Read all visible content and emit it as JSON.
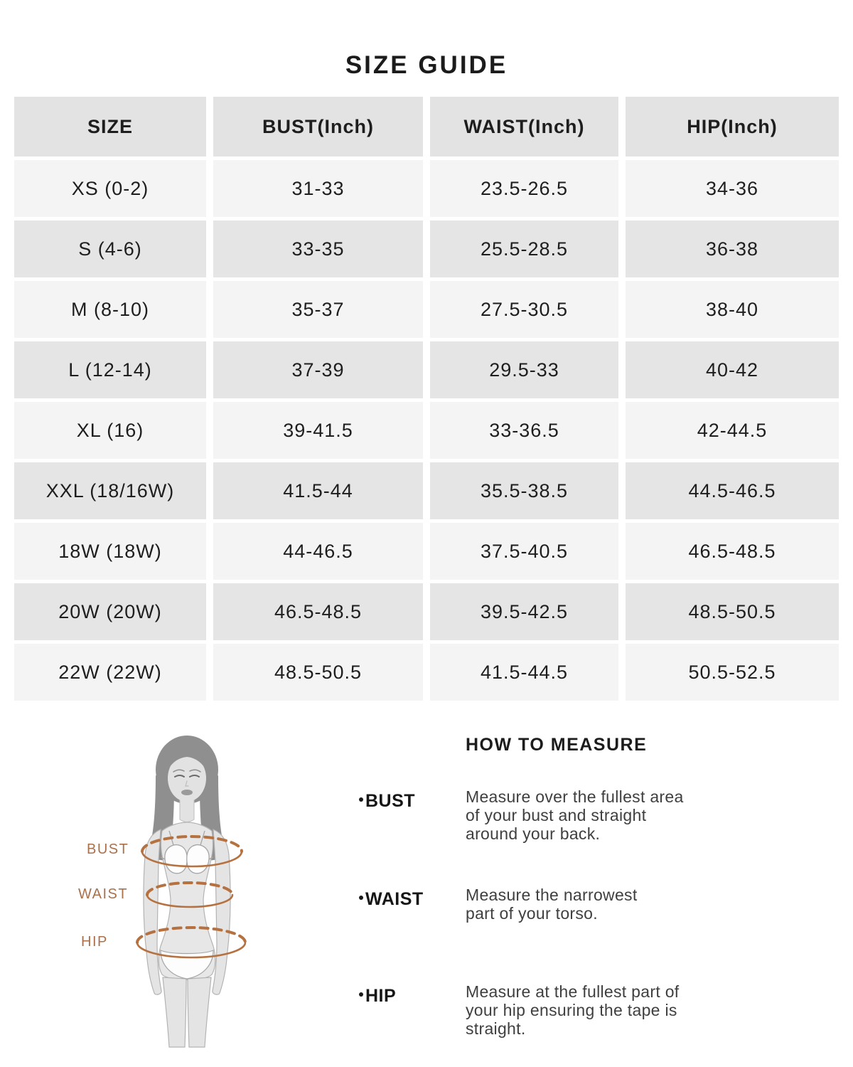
{
  "page_title": "SIZE GUIDE",
  "chart_data": {
    "type": "table",
    "title": "SIZE GUIDE",
    "columns": [
      "SIZE",
      "BUST(Inch)",
      "WAIST(Inch)",
      "HIP(Inch)"
    ],
    "rows": [
      [
        "XS (0-2)",
        "31-33",
        "23.5-26.5",
        "34-36"
      ],
      [
        "S (4-6)",
        "33-35",
        "25.5-28.5",
        "36-38"
      ],
      [
        "M (8-10)",
        "35-37",
        "27.5-30.5",
        "38-40"
      ],
      [
        "L (12-14)",
        "37-39",
        "29.5-33",
        "40-42"
      ],
      [
        "XL (16)",
        "39-41.5",
        "33-36.5",
        "42-44.5"
      ],
      [
        "XXL (18/16W)",
        "41.5-44",
        "35.5-38.5",
        "44.5-46.5"
      ],
      [
        "18W (18W)",
        "44-46.5",
        "37.5-40.5",
        "46.5-48.5"
      ],
      [
        "20W (20W)",
        "46.5-48.5",
        "39.5-42.5",
        "48.5-50.5"
      ],
      [
        "22W (22W)",
        "48.5-50.5",
        "41.5-44.5",
        "50.5-52.5"
      ]
    ],
    "units": "Inch",
    "layout": {
      "header_background": "#e3e3e3",
      "alternating_rows": [
        "#f4f4f4",
        "#e5e5e5"
      ]
    }
  },
  "figure": {
    "labels": {
      "bust": "BUST",
      "waist": "WAIST",
      "hip": "HIP"
    }
  },
  "measure": {
    "heading": "HOW TO MEASURE",
    "items": [
      {
        "term": "BUST",
        "description": "Measure over the fullest area\nof your bust and straight\naround your back."
      },
      {
        "term": "WAIST",
        "description": "Measure the narrowest\npart of your torso."
      },
      {
        "term": "HIP",
        "description": "Measure at the fullest part of\nyour hip ensuring the tape is\nstraight."
      }
    ]
  },
  "colors": {
    "accent": "#a9714c",
    "ellipse": "#b5713f",
    "header_bg": "#e3e3e3",
    "row_gray": "#e5e5e5",
    "row_light": "#f4f4f4",
    "text": "#1b1b1b",
    "desc_text": "#3f3f3f"
  }
}
